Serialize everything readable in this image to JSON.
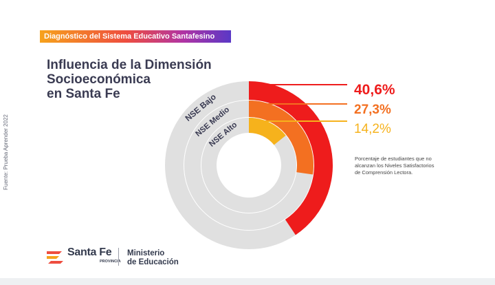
{
  "header": {
    "banner_text": "Diagnóstico del Sistema Educativo Santafesino",
    "title_lines": [
      "Influencia de la Dimensión",
      "Socioeconómica",
      "en Santa Fe"
    ]
  },
  "source_note": "Fuente: Prueba Aprender 2022",
  "note_lines": [
    "Porcentaje de estudiantes que no",
    "alcanzan los Niveles Satisfactorios",
    "de Comprensión Lectora."
  ],
  "footer": {
    "logo_name": "Santa Fe",
    "logo_sub": "PROVINCIA",
    "ministry_lines": [
      "Ministerio",
      "de Educación"
    ]
  },
  "colors": {
    "background_ring": "#e0e0e0",
    "nse_bajo": "#ee1c1c",
    "nse_medio": "#f37021",
    "nse_alto": "#f6b21c",
    "title": "#3a3b52"
  },
  "chart_data": {
    "type": "radial-bar",
    "series": [
      {
        "name": "NSE Bajo",
        "value": 40.6,
        "label": "40,6%",
        "color": "#ee1c1c"
      },
      {
        "name": "NSE Medio",
        "value": 27.3,
        "label": "27,3%",
        "color": "#f37021"
      },
      {
        "name": "NSE Alto",
        "value": 14.2,
        "label": "14,2%",
        "color": "#f6b21c"
      }
    ],
    "max": 100
  }
}
